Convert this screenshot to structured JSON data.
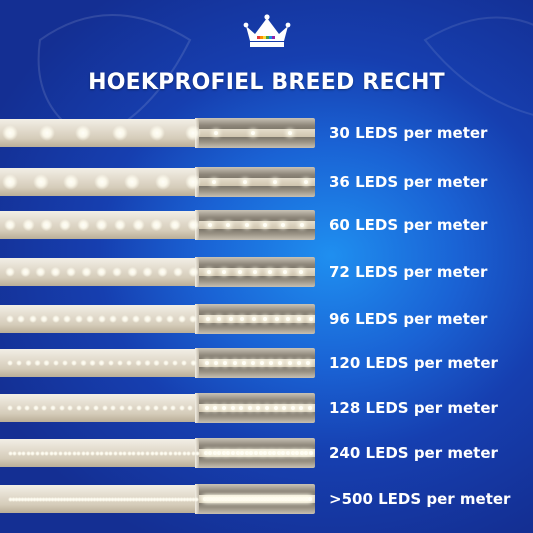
{
  "title": "HOEKPROFIEL BREED RECHT",
  "logo": {
    "icon": "crown-icon",
    "colors": [
      "#ffffff",
      "#e53935",
      "#fb8c00",
      "#fdd835",
      "#43a047",
      "#1e88e5",
      "#8e24aa"
    ]
  },
  "rows": [
    {
      "label": "30 LEDS per meter",
      "leds_per_meter": 30
    },
    {
      "label": "36 LEDS per meter",
      "leds_per_meter": 36
    },
    {
      "label": "60 LEDS per meter",
      "leds_per_meter": 60
    },
    {
      "label": "72 LEDS per meter",
      "leds_per_meter": 72
    },
    {
      "label": "96 LEDS per meter",
      "leds_per_meter": 96
    },
    {
      "label": "120 LEDS per meter",
      "leds_per_meter": 120
    },
    {
      "label": "128 LEDS per meter",
      "leds_per_meter": 128
    },
    {
      "label": "240 LEDS per meter",
      "leds_per_meter": 240
    },
    {
      "label": ">500 LEDS per meter",
      "leds_per_meter": 500
    }
  ],
  "colors": {
    "background": "#1a5fd0",
    "text": "#ffffff",
    "diffuser": "#e8e2d4",
    "led": "#fffef6"
  }
}
